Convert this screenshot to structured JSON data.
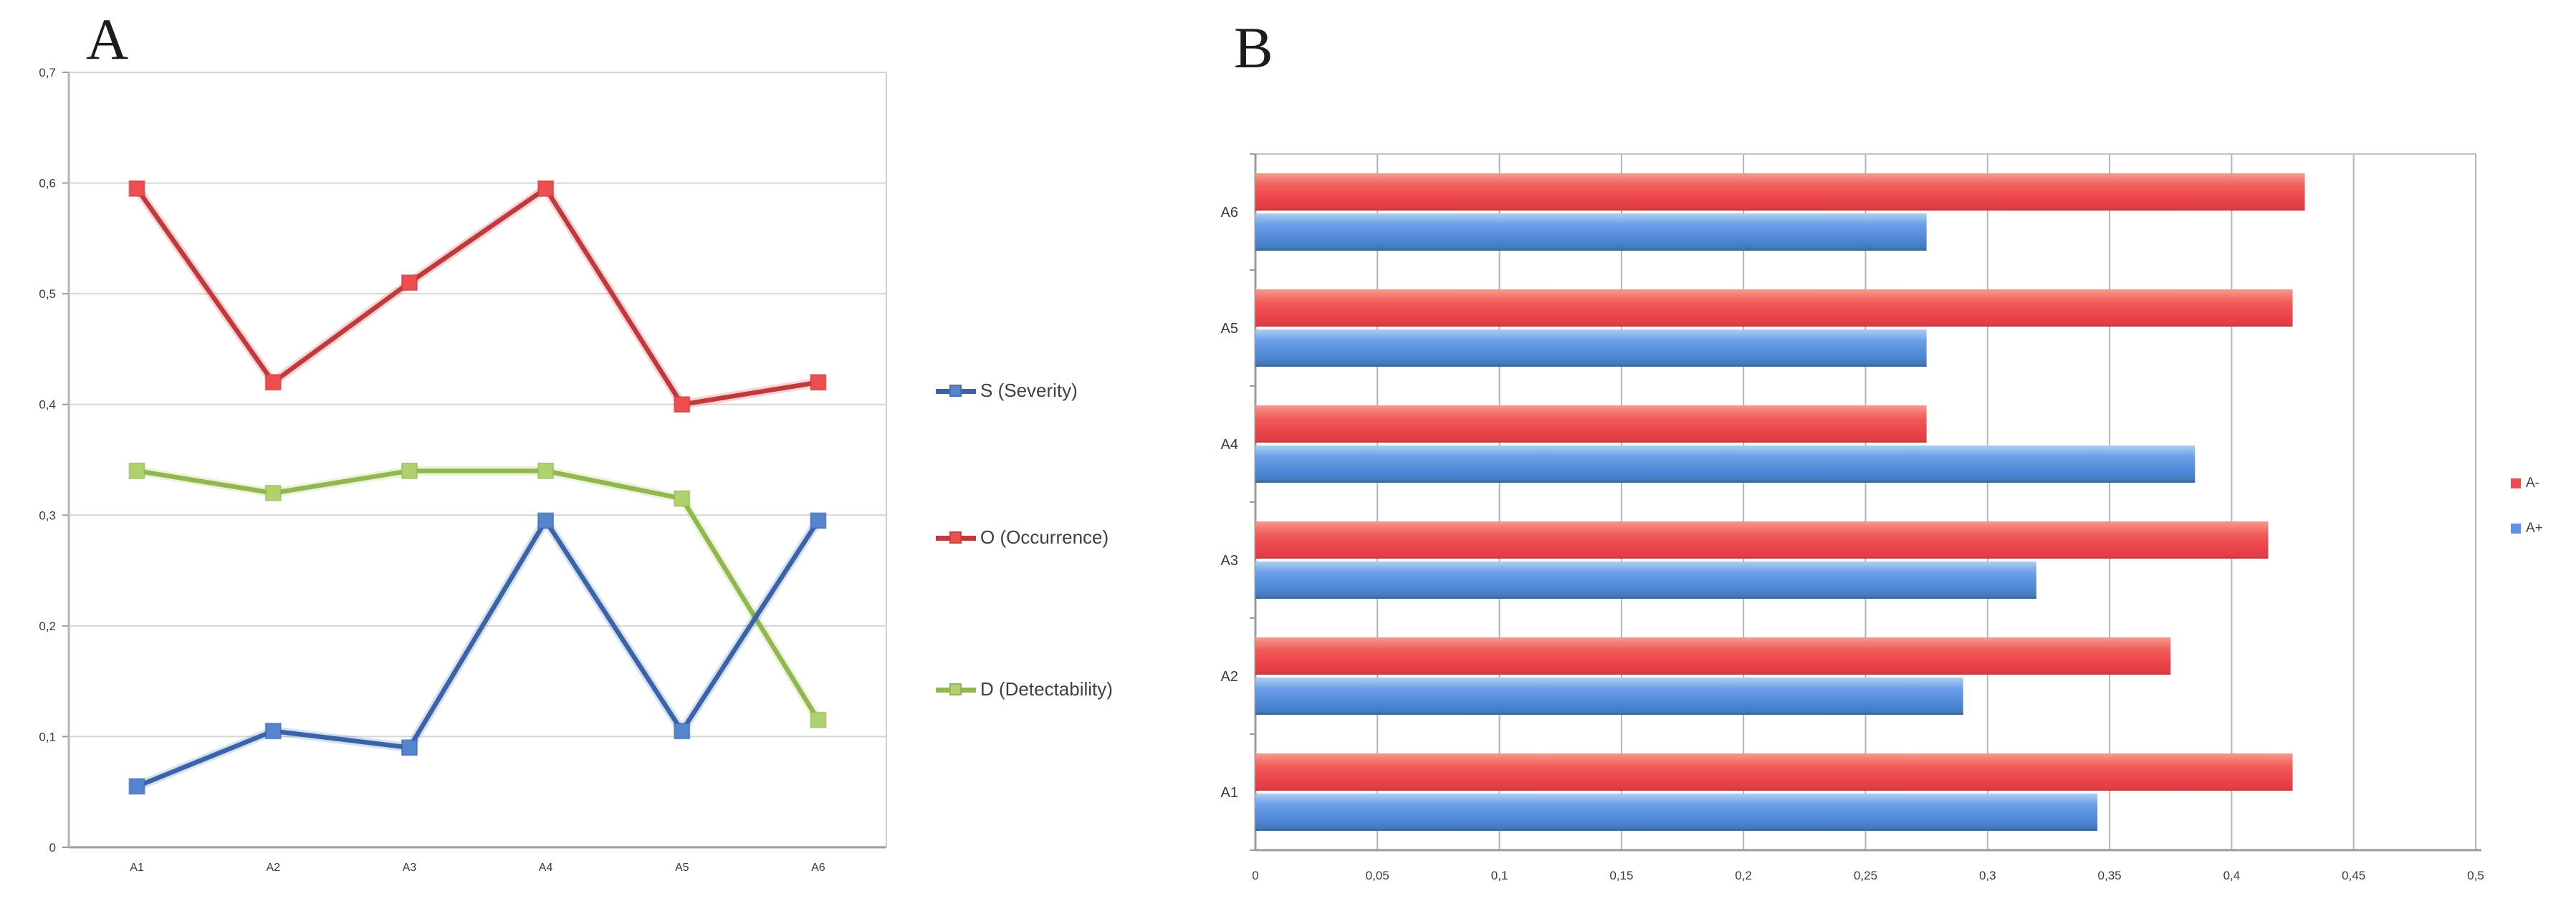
{
  "titles": {
    "chart_a": "A",
    "chart_b": "B"
  },
  "colors": {
    "background": "#ffffff",
    "grid_a": "#d6d6d6",
    "grid_b": "#b4b4b4",
    "axis": "#9c9c9c",
    "plot_border": "#d0d0d0",
    "text": "#3a3a3a",
    "severity_line": "#3a63a8",
    "severity_marker": "#5586cd",
    "occurrence_line": "#bf3a3c",
    "occurrence_marker": "#ef4e4e",
    "detectability_line": "#93b750",
    "detectability_marker": "#b0d26e",
    "bar_red": "#ee4a4e",
    "bar_blue": "#5b92e5"
  },
  "chart_data": [
    {
      "type": "line",
      "panel": "A",
      "title": "A",
      "categories": [
        "A1",
        "A2",
        "A3",
        "A4",
        "A5",
        "A6"
      ],
      "series": [
        {
          "name": "S (Severity)",
          "line_color": "#3a63a8",
          "marker_color": "#5586cd",
          "values": [
            0.055,
            0.105,
            0.09,
            0.295,
            0.105,
            0.295
          ]
        },
        {
          "name": "O  (Occurrence)",
          "line_color": "#bf3a3c",
          "marker_color": "#ef4e4e",
          "values": [
            0.595,
            0.42,
            0.51,
            0.595,
            0.4,
            0.42
          ]
        },
        {
          "name": "D (Detectability)",
          "line_color": "#93b750",
          "marker_color": "#b0d26e",
          "values": [
            0.34,
            0.32,
            0.34,
            0.34,
            0.315,
            0.115
          ]
        }
      ],
      "ylim": [
        0,
        0.7
      ],
      "ytick_labels_top_to_bottom": [
        "0,7",
        "0,6",
        "0,5",
        "0,4",
        "0,3",
        "0,2",
        "0,1",
        "0"
      ],
      "grid": true,
      "legend_position": "right-of-plot",
      "legend_order_top_to_bottom": [
        "S (Severity)",
        "O  (Occurrence)",
        "D (Detectability)"
      ]
    },
    {
      "type": "bar",
      "panel": "B",
      "title": "B",
      "orientation": "horizontal",
      "categories_top_to_bottom": [
        "A6",
        "A5",
        "A4",
        "A3",
        "A2",
        "A1"
      ],
      "series": [
        {
          "name": "A-",
          "color": "#ee4a4e",
          "values_top_to_bottom": [
            0.43,
            0.425,
            0.275,
            0.415,
            0.375,
            0.425
          ]
        },
        {
          "name": "A+",
          "color": "#5b92e5",
          "values_top_to_bottom": [
            0.275,
            0.275,
            0.385,
            0.32,
            0.29,
            0.345
          ]
        }
      ],
      "xlim": [
        0,
        0.5
      ],
      "xtick_labels": [
        "0",
        "0,05",
        "0,1",
        "0,15",
        "0,2",
        "0,25",
        "0,3",
        "0,35",
        "0,4",
        "0,45",
        "0,5"
      ],
      "grid": true,
      "legend_position": "right"
    }
  ]
}
